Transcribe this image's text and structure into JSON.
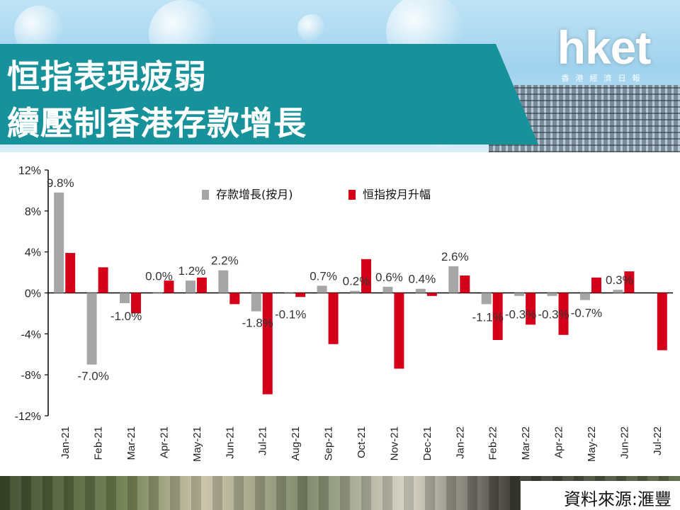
{
  "title": {
    "line1": "恒指表現疲弱",
    "line2": "續壓制香港存款增長"
  },
  "logo": {
    "main": "hket",
    "sub": "香港經濟日報"
  },
  "source": "資料來源:滙豐",
  "colors": {
    "deposit": "#a6a6a6",
    "hsi": "#d4001a",
    "title_band": "#17919a"
  },
  "chart_data": {
    "type": "bar",
    "categories": [
      "Jan-21",
      "Feb-21",
      "Mar-21",
      "Apr-21",
      "May-21",
      "Jun-21",
      "Jul-21",
      "Aug-21",
      "Sep-21",
      "Oct-21",
      "Nov-21",
      "Dec-21",
      "Jan-22",
      "Feb-22",
      "Mar-22",
      "Apr-22",
      "May-22",
      "Jun-22",
      "Jul-22"
    ],
    "series": [
      {
        "name": "存款增長(按月)",
        "values": [
          9.8,
          -7.0,
          -1.0,
          0.0,
          1.2,
          2.2,
          -1.8,
          -0.1,
          0.7,
          0.2,
          0.6,
          0.4,
          2.6,
          -1.1,
          -0.3,
          -0.3,
          -0.7,
          0.3,
          null
        ],
        "labels": [
          "9.8%",
          "-7.0%",
          "-1.0%",
          "0.0%",
          "1.2%",
          "2.2%",
          "-1.8%",
          "-0.1%",
          "0.7%",
          "0.2%",
          "0.6%",
          "0.4%",
          "2.6%",
          "-1.1%",
          "-0.3%",
          "-0.3%",
          "-0.7%",
          "0.3%",
          ""
        ]
      },
      {
        "name": "恒指按月升幅",
        "values": [
          3.9,
          2.5,
          -2.0,
          1.2,
          1.5,
          -1.1,
          -9.9,
          -0.4,
          -5.0,
          3.3,
          -7.4,
          -0.3,
          1.7,
          -4.6,
          -3.1,
          -4.1,
          1.5,
          2.1,
          -5.6
        ]
      }
    ],
    "yticks": [
      "12%",
      "8%",
      "4%",
      "0%",
      "-4%",
      "-8%",
      "-12%"
    ],
    "ytick_values": [
      12,
      8,
      4,
      0,
      -4,
      -8,
      -12
    ],
    "ylim": [
      -12,
      12
    ],
    "legend": "top-center",
    "grid": false
  }
}
